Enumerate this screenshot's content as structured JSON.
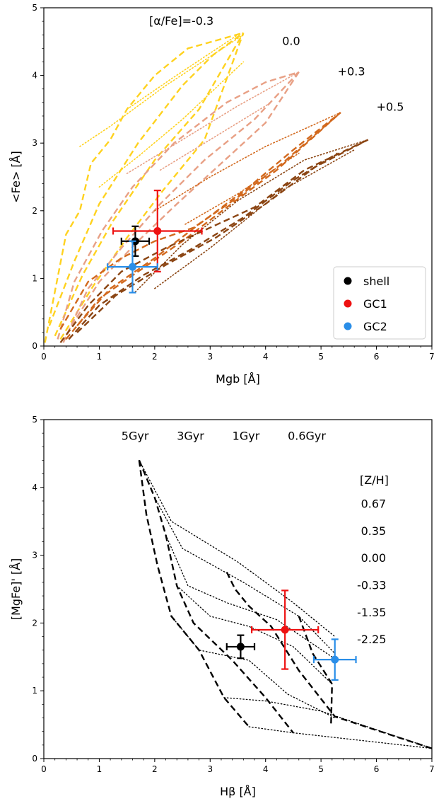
{
  "chart_data": [
    {
      "type": "line",
      "xlabel": "Mgb [Å]",
      "ylabel": "<Fe> [Å]",
      "xlim": [
        0,
        7
      ],
      "ylim": [
        0,
        5
      ],
      "xticks": [
        0,
        1,
        2,
        3,
        4,
        5,
        6,
        7
      ],
      "yticks": [
        0,
        1,
        2,
        3,
        4,
        5
      ],
      "annotations": [
        {
          "text": "[α/Fe]=-0.3",
          "x": 1.9,
          "y": 4.75
        },
        {
          "text": "0.0",
          "x": 4.3,
          "y": 4.45
        },
        {
          "text": "+0.3",
          "x": 5.3,
          "y": 4.0
        },
        {
          "text": "+0.5",
          "x": 6.0,
          "y": 3.48
        }
      ],
      "legend": {
        "position": "lower right",
        "entries": [
          {
            "label": "shell",
            "color": "#000000"
          },
          {
            "label": "GC1",
            "color": "#ee1111"
          },
          {
            "label": "GC2",
            "color": "#2a8ee8"
          }
        ]
      },
      "grids": [
        {
          "alpha_fe": "-0.3",
          "color": "#ffd21f",
          "dashed": [
            [
              [
                0.02,
                0.05
              ],
              [
                0.4,
                1.65
              ],
              [
                0.65,
                2.0
              ],
              [
                0.85,
                2.7
              ],
              [
                1.2,
                3.05
              ],
              [
                1.5,
                3.5
              ],
              [
                2.0,
                4.0
              ],
              [
                2.6,
                4.4
              ],
              [
                3.6,
                4.63
              ]
            ],
            [
              [
                0.1,
                0.3
              ],
              [
                0.55,
                1.25
              ],
              [
                1.0,
                2.1
              ],
              [
                1.7,
                3.0
              ],
              [
                2.5,
                3.85
              ],
              [
                3.05,
                4.3
              ],
              [
                3.6,
                4.63
              ]
            ],
            [
              [
                0.2,
                0.15
              ],
              [
                0.7,
                1.05
              ],
              [
                1.25,
                1.85
              ],
              [
                2.0,
                2.75
              ],
              [
                2.8,
                3.5
              ],
              [
                3.6,
                4.63
              ]
            ],
            [
              [
                0.3,
                0.1
              ],
              [
                0.9,
                0.9
              ],
              [
                1.5,
                1.6
              ],
              [
                2.15,
                2.3
              ],
              [
                2.9,
                3.05
              ],
              [
                3.6,
                4.63
              ]
            ]
          ],
          "dotted": [
            [
              [
                0.65,
                2.95
              ],
              [
                1.2,
                3.25
              ],
              [
                2.2,
                3.85
              ],
              [
                3.6,
                4.6
              ]
            ],
            [
              [
                1.0,
                2.35
              ],
              [
                1.7,
                2.8
              ],
              [
                2.5,
                3.35
              ],
              [
                3.6,
                4.2
              ]
            ],
            [
              [
                1.5,
                3.5
              ],
              [
                2.3,
                3.95
              ],
              [
                3.5,
                4.6
              ]
            ]
          ]
        },
        {
          "alpha_fe": "0.0",
          "color": "#e8a085",
          "dashed": [
            [
              [
                0.25,
                0.1
              ],
              [
                0.55,
                0.95
              ],
              [
                1.05,
                1.7
              ],
              [
                1.6,
                2.35
              ],
              [
                2.35,
                3.0
              ],
              [
                3.3,
                3.6
              ],
              [
                4.0,
                3.9
              ],
              [
                4.6,
                4.05
              ]
            ],
            [
              [
                0.35,
                0.05
              ],
              [
                0.8,
                0.85
              ],
              [
                1.4,
                1.45
              ],
              [
                2.1,
                2.1
              ],
              [
                2.9,
                2.75
              ],
              [
                3.8,
                3.35
              ],
              [
                4.6,
                4.05
              ]
            ],
            [
              [
                0.5,
                0.3
              ],
              [
                1.0,
                0.95
              ],
              [
                1.7,
                1.55
              ],
              [
                2.4,
                2.1
              ],
              [
                3.2,
                2.7
              ],
              [
                4.0,
                3.3
              ],
              [
                4.6,
                4.05
              ]
            ]
          ],
          "dotted": [
            [
              [
                1.5,
                2.55
              ],
              [
                2.5,
                3.05
              ],
              [
                3.5,
                3.55
              ],
              [
                4.6,
                4.05
              ]
            ],
            [
              [
                2.1,
                2.6
              ],
              [
                3.0,
                3.05
              ],
              [
                4.1,
                3.6
              ]
            ]
          ]
        },
        {
          "alpha_fe": "+0.3",
          "color": "#d2691e",
          "dashed": [
            [
              [
                0.3,
                0.25
              ],
              [
                0.8,
                0.95
              ],
              [
                1.4,
                1.3
              ],
              [
                2.0,
                1.55
              ],
              [
                2.7,
                1.75
              ],
              [
                3.5,
                2.2
              ],
              [
                4.3,
                2.7
              ],
              [
                5.35,
                3.45
              ]
            ],
            [
              [
                0.4,
                0.1
              ],
              [
                1.0,
                0.7
              ],
              [
                1.7,
                1.1
              ],
              [
                2.5,
                1.55
              ],
              [
                3.3,
                2.05
              ],
              [
                4.2,
                2.6
              ],
              [
                5.35,
                3.45
              ]
            ],
            [
              [
                0.6,
                0.3
              ],
              [
                1.2,
                0.85
              ],
              [
                2.0,
                1.3
              ],
              [
                2.8,
                1.8
              ],
              [
                3.7,
                2.35
              ],
              [
                4.5,
                2.9
              ],
              [
                5.35,
                3.45
              ]
            ]
          ],
          "dotted": [
            [
              [
                2.0,
                2.0
              ],
              [
                3.0,
                2.5
              ],
              [
                4.0,
                2.95
              ],
              [
                5.35,
                3.45
              ]
            ],
            [
              [
                2.55,
                1.8
              ],
              [
                3.5,
                2.25
              ],
              [
                4.6,
                2.85
              ]
            ]
          ]
        },
        {
          "alpha_fe": "+0.5",
          "color": "#8b4513",
          "dashed": [
            [
              [
                0.3,
                0.05
              ],
              [
                0.8,
                0.6
              ],
              [
                1.4,
                1.1
              ],
              [
                2.2,
                1.45
              ],
              [
                3.0,
                1.75
              ],
              [
                3.8,
                2.05
              ],
              [
                4.7,
                2.6
              ],
              [
                5.85,
                3.05
              ]
            ],
            [
              [
                0.45,
                0.1
              ],
              [
                1.0,
                0.6
              ],
              [
                1.8,
                1.05
              ],
              [
                2.7,
                1.45
              ],
              [
                3.6,
                1.9
              ],
              [
                4.5,
                2.45
              ],
              [
                5.3,
                2.85
              ]
            ],
            [
              [
                0.6,
                0.2
              ],
              [
                1.3,
                0.75
              ],
              [
                2.2,
                1.2
              ],
              [
                3.1,
                1.6
              ],
              [
                4.0,
                2.1
              ],
              [
                4.9,
                2.65
              ],
              [
                5.85,
                3.05
              ]
            ]
          ],
          "dotted": [
            [
              [
                1.65,
                0.8
              ],
              [
                2.5,
                1.5
              ],
              [
                3.5,
                2.15
              ],
              [
                4.7,
                2.75
              ],
              [
                5.85,
                3.05
              ]
            ],
            [
              [
                2.0,
                0.85
              ],
              [
                3.0,
                1.45
              ],
              [
                4.3,
                2.3
              ],
              [
                5.6,
                2.9
              ]
            ]
          ]
        }
      ],
      "points": [
        {
          "name": "shell",
          "x": 1.65,
          "y": 1.55,
          "xerr": 0.25,
          "yerr": 0.22,
          "color": "#000000"
        },
        {
          "name": "GC1",
          "x": 2.05,
          "y": 1.7,
          "xerr": 0.8,
          "yerr": 0.6,
          "color": "#ee1111"
        },
        {
          "name": "GC2",
          "x": 1.6,
          "y": 1.17,
          "xerr": 0.45,
          "yerr": 0.38,
          "color": "#2a8ee8"
        }
      ]
    },
    {
      "type": "line",
      "xlabel": "Hβ [Å]",
      "ylabel": "[MgFe]' [Å]",
      "xlim": [
        0,
        7
      ],
      "ylim": [
        0,
        5
      ],
      "xticks": [
        0,
        1,
        2,
        3,
        4,
        5,
        6,
        7
      ],
      "yticks": [
        0,
        1,
        2,
        3,
        4,
        5
      ],
      "annotations": [
        {
          "text": "5Gyr",
          "x": 1.4,
          "y": 4.7
        },
        {
          "text": "3Gyr",
          "x": 2.4,
          "y": 4.7
        },
        {
          "text": "1Gyr",
          "x": 3.4,
          "y": 4.7
        },
        {
          "text": "0.6Gyr",
          "x": 4.4,
          "y": 4.7
        },
        {
          "text": "[Z/H]",
          "x": 5.7,
          "y": 4.05
        },
        {
          "text": "0.67",
          "x": 5.72,
          "y": 3.7
        },
        {
          "text": "0.35",
          "x": 5.72,
          "y": 3.3
        },
        {
          "text": "0.00",
          "x": 5.72,
          "y": 2.9
        },
        {
          "text": "-0.33",
          "x": 5.65,
          "y": 2.5
        },
        {
          "text": "-1.35",
          "x": 5.65,
          "y": 2.1
        },
        {
          "text": "-2.25",
          "x": 5.65,
          "y": 1.7
        }
      ],
      "age_lines": [
        {
          "age": "5Gyr",
          "points": [
            [
              1.72,
              4.4
            ],
            [
              1.85,
              3.6
            ],
            [
              2.05,
              2.85
            ],
            [
              2.3,
              2.1
            ],
            [
              2.8,
              1.6
            ],
            [
              3.25,
              0.9
            ],
            [
              3.7,
              0.47
            ]
          ]
        },
        {
          "age": "3Gyr",
          "points": [
            [
              1.72,
              4.4
            ],
            [
              2.0,
              3.85
            ],
            [
              2.2,
              3.3
            ],
            [
              2.4,
              2.55
            ],
            [
              2.7,
              2.0
            ],
            [
              3.4,
              1.45
            ],
            [
              4.0,
              0.9
            ],
            [
              4.5,
              0.38
            ]
          ]
        },
        {
          "age": "1Gyr",
          "points": [
            [
              3.3,
              2.75
            ],
            [
              3.45,
              2.5
            ],
            [
              3.7,
              2.25
            ],
            [
              4.1,
              1.95
            ],
            [
              4.6,
              1.3
            ],
            [
              5.25,
              0.62
            ],
            [
              7.0,
              0.15
            ]
          ]
        },
        {
          "age": "0.6Gyr",
          "points": [
            [
              4.6,
              2.1
            ],
            [
              4.85,
              1.55
            ],
            [
              5.2,
              1.1
            ],
            [
              5.18,
              0.5
            ]
          ]
        }
      ],
      "metallicity_lines": [
        {
          "z_h": "0.67",
          "points": [
            [
              1.72,
              4.4
            ],
            [
              2.3,
              3.5
            ],
            [
              3.5,
              2.9
            ],
            [
              4.5,
              2.3
            ],
            [
              5.25,
              1.8
            ]
          ]
        },
        {
          "z_h": "0.35",
          "points": [
            [
              2.0,
              3.85
            ],
            [
              2.5,
              3.1
            ],
            [
              3.6,
              2.6
            ],
            [
              4.6,
              2.1
            ],
            [
              5.25,
              1.55
            ]
          ]
        },
        {
          "z_h": "0.00",
          "points": [
            [
              2.2,
              3.3
            ],
            [
              2.6,
              2.55
            ],
            [
              3.3,
              2.3
            ],
            [
              4.2,
              2.05
            ],
            [
              5.2,
              1.5
            ]
          ]
        },
        {
          "z_h": "-0.33",
          "points": [
            [
              2.4,
              2.55
            ],
            [
              3.0,
              2.1
            ],
            [
              3.7,
              1.95
            ],
            [
              4.5,
              1.65
            ],
            [
              5.2,
              1.1
            ]
          ]
        },
        {
          "z_h": "-1.35",
          "points": [
            [
              2.3,
              2.1
            ],
            [
              2.8,
              1.6
            ],
            [
              3.7,
              1.45
            ],
            [
              4.4,
              0.95
            ],
            [
              5.25,
              0.6
            ]
          ]
        },
        {
          "z_h": "-2.25",
          "points": [
            [
              3.25,
              0.9
            ],
            [
              4.0,
              0.85
            ],
            [
              5.0,
              0.7
            ],
            [
              7.0,
              0.15
            ]
          ]
        },
        {
          "z_h": "",
          "points": [
            [
              3.7,
              0.47
            ],
            [
              4.5,
              0.38
            ],
            [
              7.0,
              0.15
            ]
          ]
        }
      ],
      "points": [
        {
          "name": "shell",
          "x": 3.55,
          "y": 1.65,
          "xerr": 0.25,
          "yerr": 0.17,
          "color": "#000000"
        },
        {
          "name": "GC1",
          "x": 4.35,
          "y": 1.9,
          "xerr": 0.6,
          "yerr": 0.58,
          "color": "#ee1111"
        },
        {
          "name": "GC2",
          "x": 5.25,
          "y": 1.46,
          "xerr": 0.38,
          "yerr": 0.3,
          "color": "#2a8ee8"
        }
      ]
    }
  ]
}
